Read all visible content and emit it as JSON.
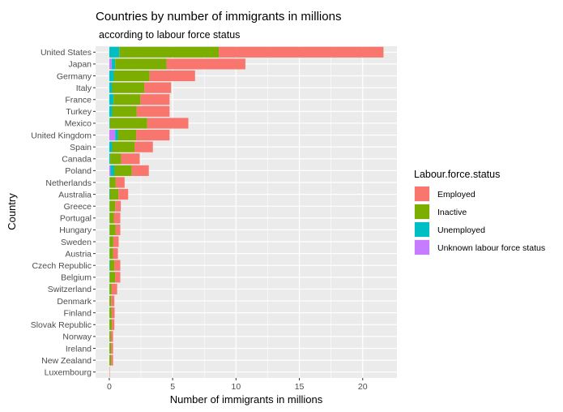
{
  "chart_data": {
    "type": "bar",
    "orientation": "horizontal",
    "stacked": true,
    "title": "Countries by number of immigrants in millions",
    "subtitle": "according to labour force status",
    "xlabel": "Number of immigrants in millions",
    "ylabel": "Country",
    "xlim": [
      -1.08,
      22.7
    ],
    "xticks": [
      0,
      5,
      10,
      15,
      20
    ],
    "grid": true,
    "legend": {
      "title": "Labour.force.status",
      "placement": "right"
    },
    "categories": [
      "United States",
      "Japan",
      "Germany",
      "Italy",
      "France",
      "Turkey",
      "Mexico",
      "United Kingdom",
      "Spain",
      "Canada",
      "Poland",
      "Netherlands",
      "Australia",
      "Greece",
      "Portugal",
      "Hungary",
      "Sweden",
      "Austria",
      "Czech Republic",
      "Belgium",
      "Switzerland",
      "Denmark",
      "Finland",
      "Slovak Republic",
      "Norway",
      "Ireland",
      "New Zealand",
      "Luxembourg"
    ],
    "series": [
      {
        "name": "Unknown labour force status",
        "color": "#C77CFF",
        "values": [
          0,
          0.19,
          0,
          0,
          0,
          0,
          0,
          0.47,
          0,
          0,
          0.1,
          0,
          0,
          0,
          0,
          0,
          0,
          0,
          0,
          0,
          0,
          0,
          0,
          0,
          0,
          0,
          0,
          0
        ]
      },
      {
        "name": "Unemployed",
        "color": "#00BFC4",
        "values": [
          0.79,
          0.28,
          0.36,
          0.23,
          0.34,
          0.23,
          0.05,
          0.21,
          0.23,
          0.08,
          0.29,
          0.02,
          0.04,
          0.02,
          0.02,
          0.02,
          0.02,
          0.02,
          0.05,
          0.02,
          0.01,
          0.01,
          0.01,
          0.01,
          0.01,
          0.01,
          0.01,
          0
        ]
      },
      {
        "name": "Inactive",
        "color": "#7CAE00",
        "values": [
          7.85,
          4.05,
          2.82,
          2.53,
          2.12,
          1.94,
          2.94,
          1.44,
          1.76,
          0.85,
          1.39,
          0.49,
          0.68,
          0.45,
          0.34,
          0.47,
          0.3,
          0.28,
          0.35,
          0.45,
          0.18,
          0.14,
          0.18,
          0.2,
          0.12,
          0.14,
          0.14,
          0.01
        ]
      },
      {
        "name": "Employed",
        "color": "#F8766D",
        "values": [
          13.0,
          6.22,
          3.59,
          2.12,
          2.3,
          2.59,
          3.25,
          2.64,
          1.45,
          1.47,
          1.34,
          0.7,
          0.77,
          0.44,
          0.51,
          0.38,
          0.42,
          0.38,
          0.47,
          0.4,
          0.43,
          0.25,
          0.23,
          0.19,
          0.17,
          0.15,
          0.15,
          0.03
        ]
      }
    ]
  }
}
